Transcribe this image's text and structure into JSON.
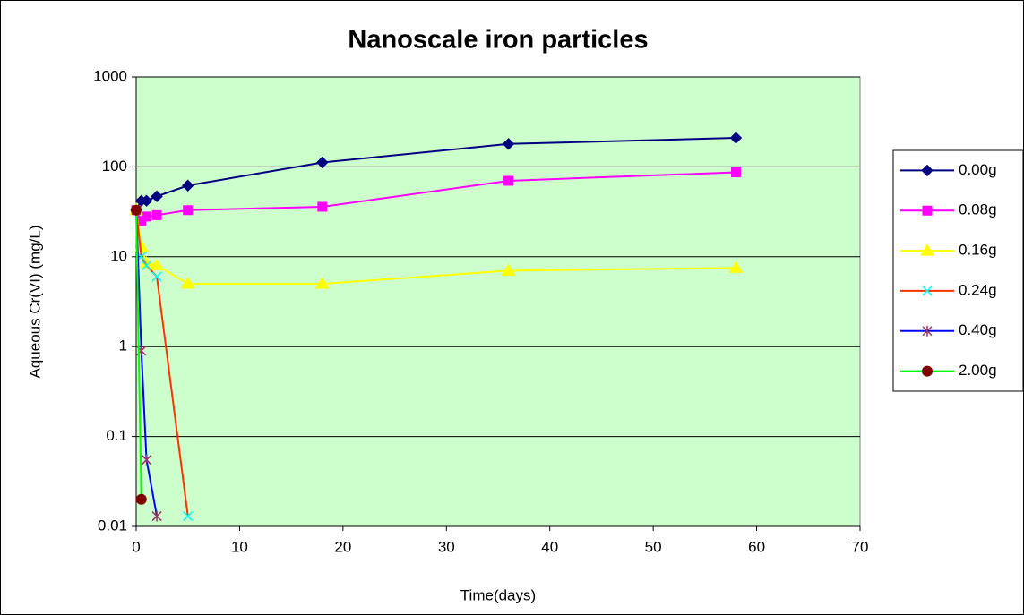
{
  "chart_data": {
    "type": "scatter",
    "title": "Nanoscale iron particles",
    "x_label": "Time(days)",
    "y_label": "Aqueous Cr(VI) (mg/L)",
    "log_y": true,
    "grid": true,
    "legend": "right",
    "plot_background": "#CCFFCC",
    "xlim": [
      0,
      70
    ],
    "xticks": [
      0,
      10,
      20,
      30,
      40,
      50,
      60,
      70
    ],
    "ylim": [
      0.01,
      1000
    ],
    "yticks": [
      0.01,
      0.1,
      1,
      10,
      100,
      1000
    ],
    "series": [
      {
        "name": "0.00g",
        "color": "#000080",
        "marker_color": "#000080",
        "marker": "diamond",
        "x": [
          0,
          0.5,
          1,
          2,
          5,
          18,
          36,
          58
        ],
        "values": [
          33,
          42,
          42,
          47,
          62,
          112,
          180,
          210
        ]
      },
      {
        "name": "0.08g",
        "color": "#FF00FF",
        "marker_color": "#FF00FF",
        "marker": "square",
        "x": [
          0,
          0.5,
          1,
          2,
          5,
          18,
          36,
          58
        ],
        "values": [
          33,
          25,
          28,
          29,
          33,
          36,
          70,
          87
        ]
      },
      {
        "name": "0.16g",
        "color": "#FFFF00",
        "marker_color": "#FFFF00",
        "marker": "triangle",
        "x": [
          0,
          0.5,
          1,
          2,
          5,
          18,
          36,
          58
        ],
        "values": [
          33,
          13,
          8.5,
          8,
          5,
          5,
          7,
          7.5
        ]
      },
      {
        "name": "0.24g",
        "color": "#FF3300",
        "marker_color": "#00FFFF",
        "marker": "x",
        "x": [
          0,
          0.5,
          1,
          2,
          5
        ],
        "values": [
          33,
          10,
          8,
          6,
          0.013
        ]
      },
      {
        "name": "0.40g",
        "color": "#0000FF",
        "marker_color": "#993366",
        "marker": "star",
        "x": [
          0,
          0.5,
          1,
          2
        ],
        "values": [
          33,
          0.9,
          0.055,
          0.013
        ]
      },
      {
        "name": "2.00g",
        "color": "#00FF00",
        "marker_color": "#800000",
        "marker": "circle",
        "x": [
          0,
          0.5
        ],
        "values": [
          33,
          0.02
        ]
      }
    ]
  }
}
